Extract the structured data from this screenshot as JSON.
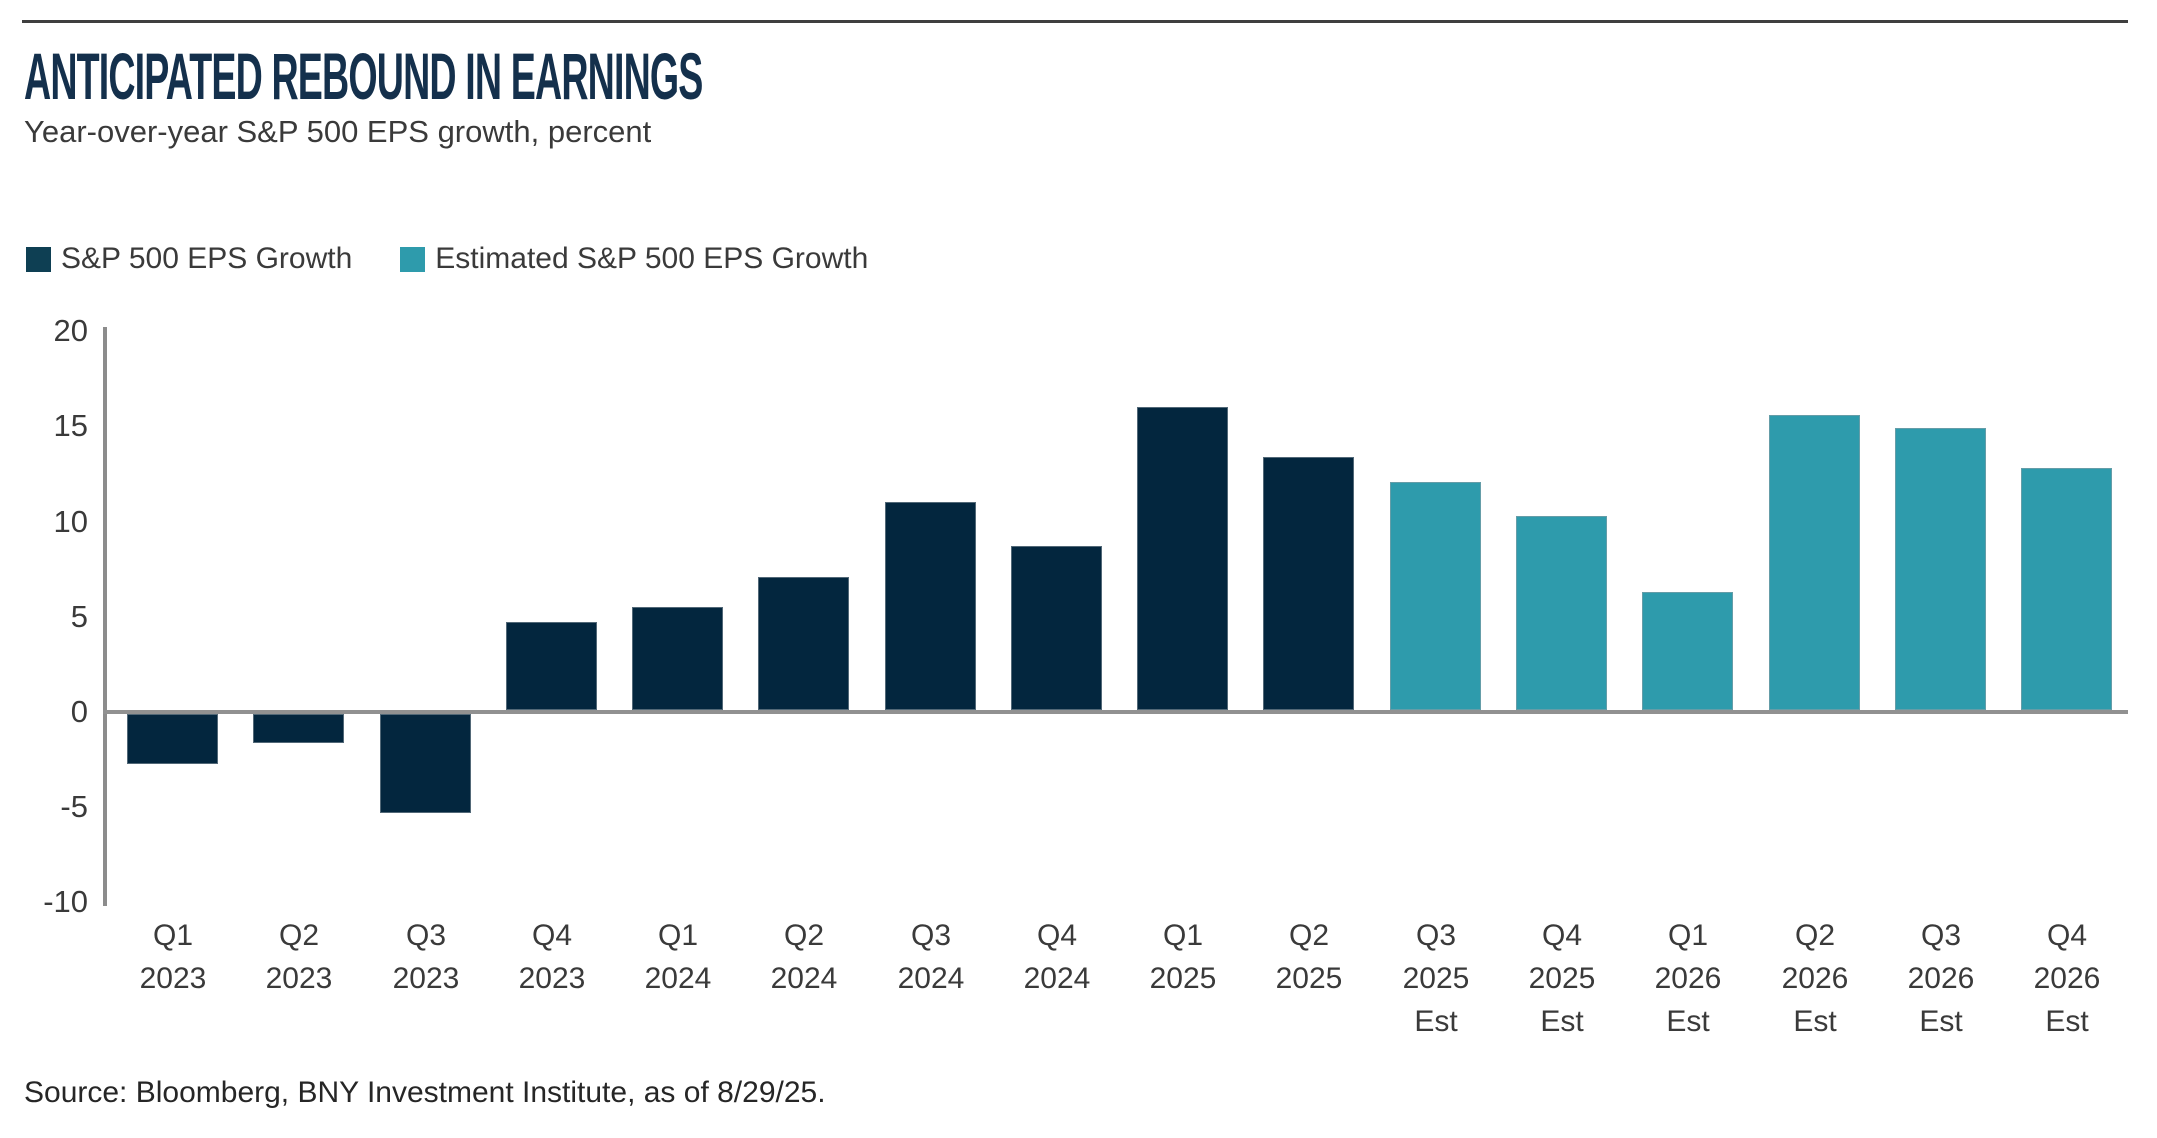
{
  "header": {
    "title": "ANTICIPATED REBOUND IN EARNINGS",
    "subtitle": "Year-over-year S&P 500 EPS growth, percent"
  },
  "legend": [
    {
      "label": "S&P 500 EPS Growth",
      "color": "#0E3F53"
    },
    {
      "label": "Estimated S&P 500 EPS Growth",
      "color": "#2E9BAC"
    }
  ],
  "source": "Source: Bloomberg, BNY Investment Institute, as of 8/29/25.",
  "chart_data": {
    "type": "bar",
    "title": "ANTICIPATED REBOUND IN EARNINGS",
    "subtitle": "Year-over-year S&P 500 EPS growth, percent",
    "unit": "percent",
    "categories": [
      {
        "line1": "Q1",
        "line2": "2023"
      },
      {
        "line1": "Q2",
        "line2": "2023"
      },
      {
        "line1": "Q3",
        "line2": "2023"
      },
      {
        "line1": "Q4",
        "line2": "2023"
      },
      {
        "line1": "Q1",
        "line2": "2024"
      },
      {
        "line1": "Q2",
        "line2": "2024"
      },
      {
        "line1": "Q3",
        "line2": "2024"
      },
      {
        "line1": "Q4",
        "line2": "2024"
      },
      {
        "line1": "Q1",
        "line2": "2025"
      },
      {
        "line1": "Q2",
        "line2": "2025"
      },
      {
        "line1": "Q3",
        "line2": "2025",
        "line3": "Est"
      },
      {
        "line1": "Q4",
        "line2": "2025",
        "line3": "Est"
      },
      {
        "line1": "Q1",
        "line2": "2026",
        "line3": "Est"
      },
      {
        "line1": "Q2",
        "line2": "2026",
        "line3": "Est"
      },
      {
        "line1": "Q3",
        "line2": "2026",
        "line3": "Est"
      },
      {
        "line1": "Q4",
        "line2": "2026",
        "line3": "Est"
      }
    ],
    "series": [
      {
        "name": "S&P 500 EPS Growth",
        "color": "#03263E",
        "values": [
          -2.6,
          -1.5,
          -5.2,
          4.6,
          5.4,
          7.0,
          10.9,
          8.6,
          15.9,
          13.3,
          null,
          null,
          null,
          null,
          null,
          null
        ]
      },
      {
        "name": "Estimated S&P 500 EPS Growth",
        "color": "#2E9BAC",
        "values": [
          null,
          null,
          null,
          null,
          null,
          null,
          null,
          null,
          null,
          null,
          12.0,
          10.2,
          6.2,
          15.5,
          14.8,
          12.7
        ]
      }
    ],
    "yticks": [
      20,
      15,
      10,
      5,
      0,
      -5,
      -10
    ],
    "ylim": [
      -10,
      20
    ],
    "grid": false,
    "legend_position": "top-left",
    "baseline": 0
  }
}
